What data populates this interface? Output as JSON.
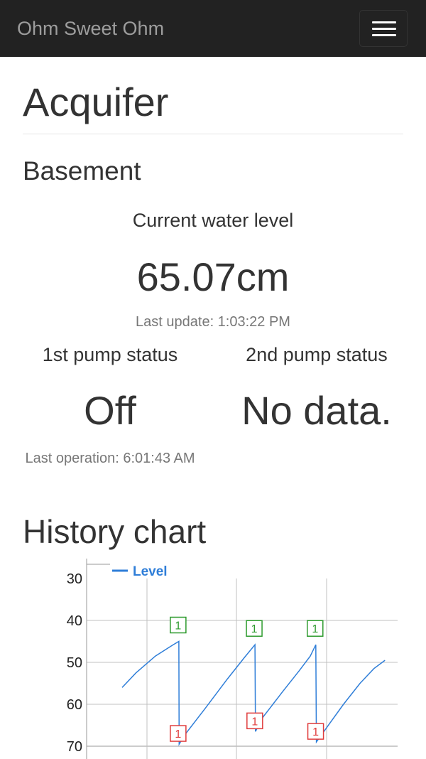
{
  "navbar": {
    "brand": "Ohm Sweet Ohm",
    "menu_icon": "hamburger-icon"
  },
  "page": {
    "title": "Acquifer",
    "section": "Basement"
  },
  "water": {
    "label": "Current water level",
    "value": "65.07cm",
    "last_update": "Last update: 1:03:22 PM"
  },
  "pumps": [
    {
      "label": "1st pump status",
      "status": "Off",
      "last_operation": "Last operation: 6:01:43 AM"
    },
    {
      "label": "2nd pump status",
      "status": "No data."
    }
  ],
  "history": {
    "title": "History chart"
  },
  "chart_data": {
    "type": "line",
    "y_reversed": true,
    "ylim": [
      30,
      70
    ],
    "yticks": [
      "30",
      "40",
      "50",
      "60",
      "70"
    ],
    "grid": true,
    "legend_position": "top-left",
    "series": [
      {
        "name": "Level",
        "color": "#2f7ed8",
        "points": [
          [
            0,
            56
          ],
          [
            5,
            52.5
          ],
          [
            12,
            48.5
          ],
          [
            18,
            46
          ],
          [
            20.5,
            45
          ],
          [
            20.6,
            69.5
          ],
          [
            23,
            67
          ],
          [
            30,
            61
          ],
          [
            38,
            54
          ],
          [
            44,
            49
          ],
          [
            48,
            45.8
          ],
          [
            48.2,
            66.5
          ],
          [
            51,
            63
          ],
          [
            58,
            57
          ],
          [
            64,
            52
          ],
          [
            68,
            48.5
          ],
          [
            70,
            45.8
          ],
          [
            70.2,
            69
          ],
          [
            74,
            65.5
          ],
          [
            80,
            60
          ],
          [
            86,
            55
          ],
          [
            91,
            51.5
          ],
          [
            95,
            49.5
          ]
        ]
      }
    ],
    "flags": [
      {
        "label": "1",
        "x": 20.5,
        "y": 45,
        "type": "pump-on",
        "color": "#2e9b2e"
      },
      {
        "label": "1",
        "x": 20.5,
        "y": 69.5,
        "type": "pump-off",
        "color": "#e03c3c"
      },
      {
        "label": "1",
        "x": 48,
        "y": 45.8,
        "type": "pump-on",
        "color": "#2e9b2e"
      },
      {
        "label": "1",
        "x": 48.2,
        "y": 66.5,
        "type": "pump-off",
        "color": "#e03c3c"
      },
      {
        "label": "1",
        "x": 70,
        "y": 45.8,
        "type": "pump-on",
        "color": "#2e9b2e"
      },
      {
        "label": "1",
        "x": 70.2,
        "y": 69,
        "type": "pump-off",
        "color": "#e03c3c"
      }
    ]
  }
}
